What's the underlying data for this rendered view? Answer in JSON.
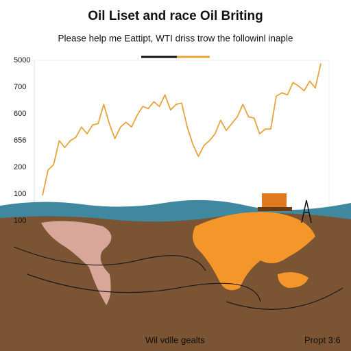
{
  "chart_data": {
    "type": "line",
    "title": "Oil Liset and race Oil Briting",
    "subtitle": "Please help me Eattipt, WTI driss trow the followinl inaple",
    "y_labels": [
      "5000",
      "700",
      "600",
      "656",
      "200",
      "100",
      "100"
    ],
    "ylim": [
      0,
      850
    ],
    "color": "#e8a33d",
    "values": [
      60,
      208,
      240,
      380,
      340,
      380,
      400,
      460,
      420,
      472,
      480,
      592,
      480,
      392,
      460,
      488,
      460,
      528,
      580,
      568,
      608,
      580,
      648,
      560,
      592,
      600,
      460,
      360,
      288,
      352,
      380,
      420,
      500,
      440,
      480,
      520,
      592,
      520,
      512,
      420,
      448,
      448,
      640,
      660,
      648,
      720,
      700,
      672,
      728,
      688,
      832
    ],
    "footer_left": "Wil vdlle gealts",
    "footer_right": "Propt 3:6"
  }
}
